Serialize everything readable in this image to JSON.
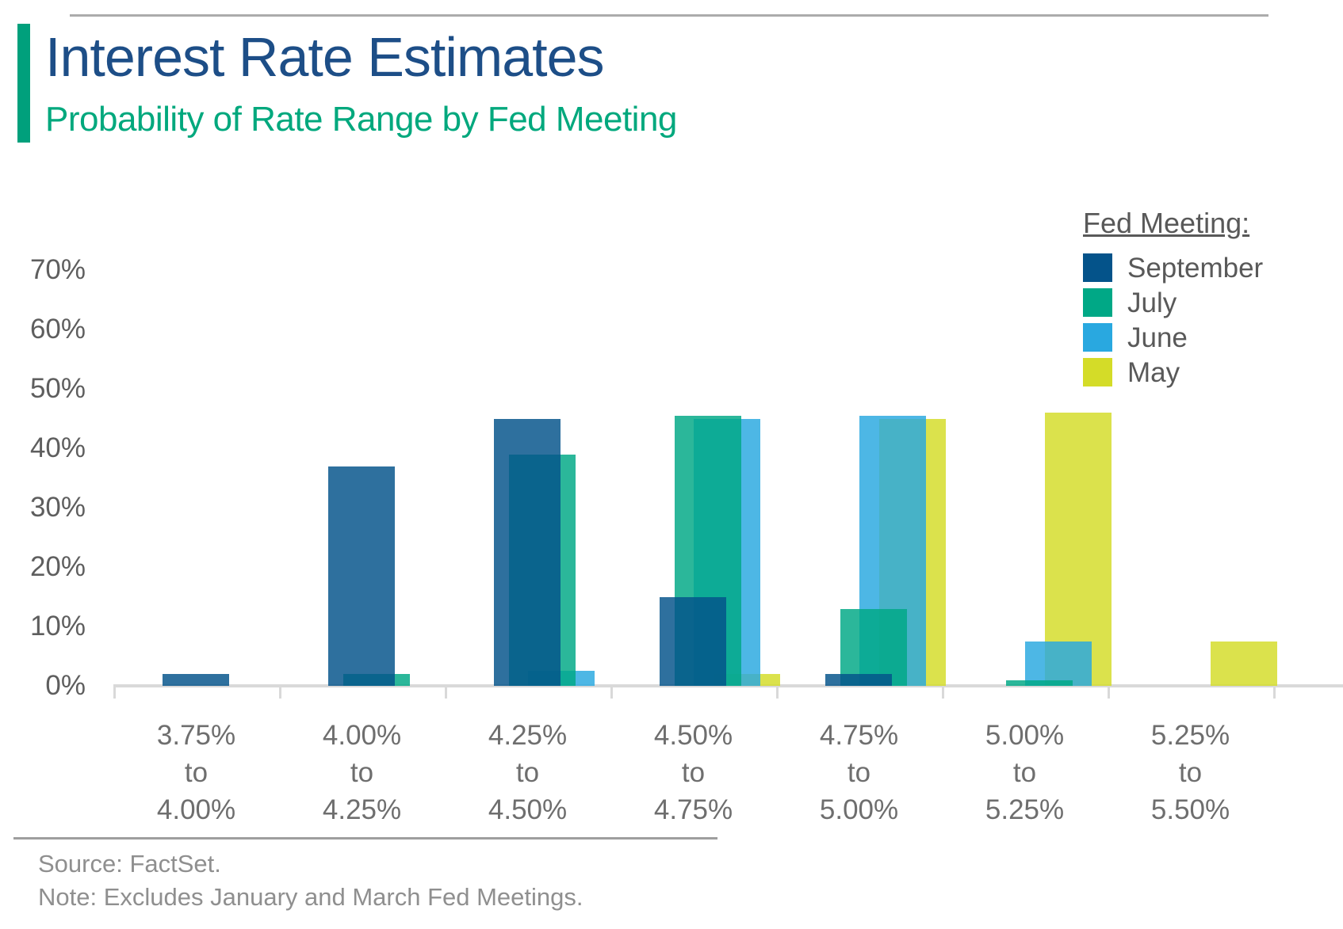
{
  "page": {
    "title": "Interest Rate Estimates",
    "subtitle": "Probability of Rate Range by Fed Meeting",
    "accent_color": "#00A07C",
    "title_color": "#1D4E87",
    "subtitle_color": "#00A87D"
  },
  "legend": {
    "title": "Fed Meeting:",
    "items": [
      {
        "label": "September",
        "color": "#04538A"
      },
      {
        "label": "July",
        "color": "#00A886"
      },
      {
        "label": "June",
        "color": "#29A8E0"
      },
      {
        "label": "May",
        "color": "#D4DC28"
      }
    ]
  },
  "chart_data": {
    "type": "bar",
    "title": "Interest Rate Estimates",
    "subtitle": "Probability of Rate Range by Fed Meeting",
    "categories": [
      "3.75% to 4.00%",
      "4.00% to 4.25%",
      "4.25% to 4.50%",
      "4.50% to 4.75%",
      "4.75% to 5.00%",
      "5.00% to 5.25%",
      "5.25% to 5.50%"
    ],
    "category_label_lines": [
      [
        "3.75%",
        "to",
        "4.00%"
      ],
      [
        "4.00%",
        "to",
        "4.25%"
      ],
      [
        "4.25%",
        "to",
        "4.50%"
      ],
      [
        "4.50%",
        "to",
        "4.75%"
      ],
      [
        "4.75%",
        "to",
        "5.00%"
      ],
      [
        "5.00%",
        "to",
        "5.25%"
      ],
      [
        "5.25%",
        "to",
        "5.50%"
      ]
    ],
    "series": [
      {
        "name": "September",
        "color": "#04538A",
        "values": [
          2,
          37,
          45,
          15,
          2,
          0,
          0
        ]
      },
      {
        "name": "July",
        "color": "#00A886",
        "values": [
          0,
          2,
          39,
          45.5,
          13,
          1,
          0
        ]
      },
      {
        "name": "June",
        "color": "#29A8E0",
        "values": [
          0,
          0,
          2.5,
          45,
          45.5,
          7.5,
          0
        ]
      },
      {
        "name": "May",
        "color": "#D4DC28",
        "values": [
          0,
          0,
          0,
          2,
          45,
          46,
          7.5
        ]
      }
    ],
    "xlabel": "",
    "ylabel": "",
    "ylim": [
      0,
      70
    ],
    "ytick_labels": [
      "0%",
      "10%",
      "20%",
      "30%",
      "40%",
      "50%",
      "60%",
      "70%"
    ],
    "grid": false,
    "legend_position": "top-right",
    "bar_style": "overlapping-translucent"
  },
  "footer": {
    "source": "Source: FactSet.",
    "note": "Note: Excludes January and March Fed Meetings."
  }
}
